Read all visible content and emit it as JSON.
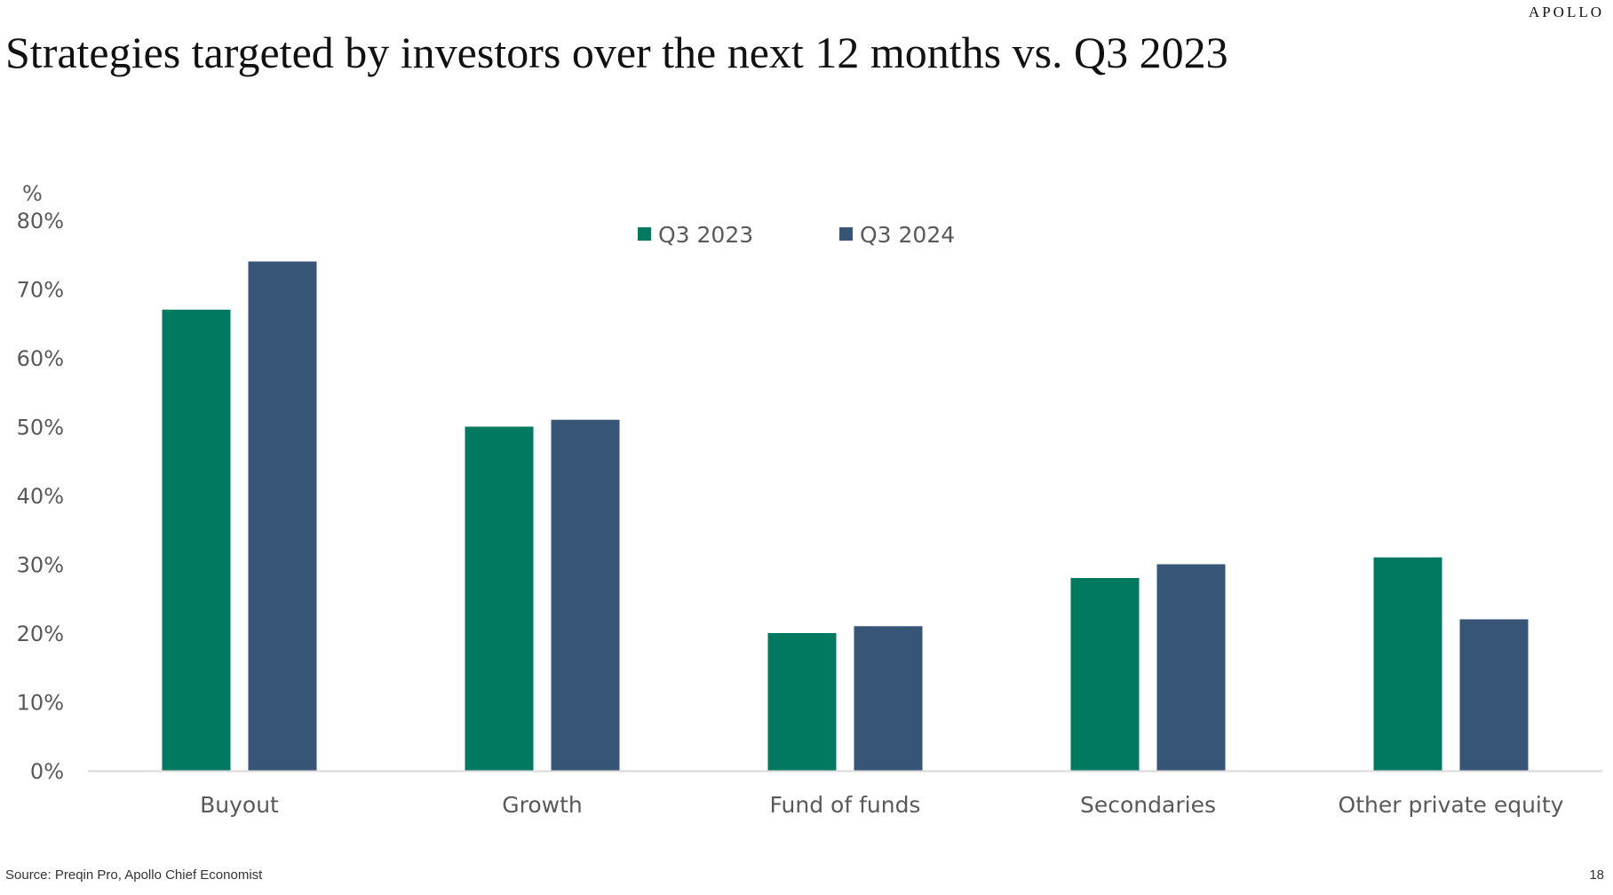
{
  "header": {
    "brand": "APOLLO",
    "title": "Strategies targeted by investors over the next 12 months vs. Q3 2023"
  },
  "chart_data": {
    "type": "bar",
    "categories": [
      "Buyout",
      "Growth",
      "Fund of funds",
      "Secondaries",
      "Other private equity"
    ],
    "series": [
      {
        "name": "Q3 2023",
        "values": [
          67,
          50,
          20,
          28,
          31
        ],
        "color": "#007961"
      },
      {
        "name": "Q3 2024",
        "values": [
          74,
          51,
          21,
          30,
          22
        ],
        "color": "#375577"
      }
    ],
    "ylabel": "%",
    "ylim": [
      0,
      80
    ],
    "yticks": [
      "0%",
      "10%",
      "20%",
      "30%",
      "40%",
      "50%",
      "60%",
      "70%",
      "80%"
    ],
    "grid": false,
    "legend": "top-center"
  },
  "footer": {
    "source": "Source: Preqin Pro, Apollo Chief Economist",
    "page_number": "18"
  }
}
